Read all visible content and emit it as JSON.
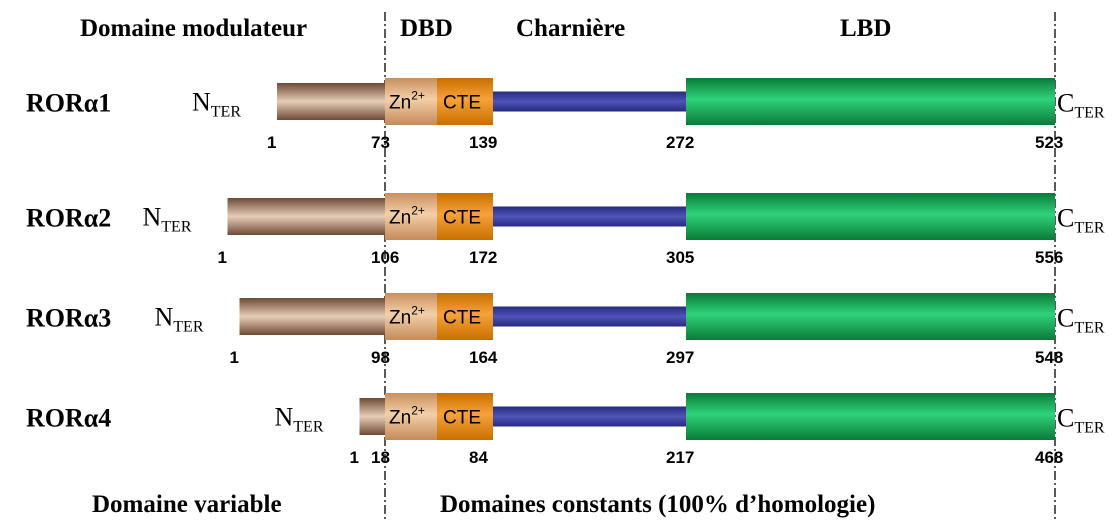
{
  "headers": {
    "modulator": "Domaine modulateur",
    "dbd": "DBD",
    "hinge": "Charnière",
    "lbd": "LBD"
  },
  "footers": {
    "variable": "Domaine variable",
    "constant": "Domaines constants (100% d’homologie)"
  },
  "labels": {
    "n_main": "N",
    "n_sub": "TER",
    "c_main": "C",
    "c_sub": "TER",
    "zn_main": "Zn",
    "zn_sup": "2+",
    "cte": "CTE"
  },
  "isoforms": [
    {
      "name": "RORα1",
      "start": "1",
      "dbd_start": "73",
      "hinge_start": "139",
      "lbd_start": "272",
      "end": "523",
      "nterm_length": 72
    },
    {
      "name": "RORα2",
      "start": "1",
      "dbd_start": "106",
      "hinge_start": "172",
      "lbd_start": "305",
      "end": "556",
      "nterm_length": 105
    },
    {
      "name": "RORα3",
      "start": "1",
      "dbd_start": "98",
      "hinge_start": "164",
      "lbd_start": "297",
      "end": "548",
      "nterm_length": 97
    },
    {
      "name": "RORα4",
      "start": "1",
      "dbd_start": "18",
      "hinge_start": "84",
      "lbd_start": "217",
      "end": "468",
      "nterm_length": 17
    }
  ],
  "colors": {
    "nterm": "#8f6a52",
    "zn": "#e8b586",
    "cte": "#e88a0c",
    "hinge": "#343a9a",
    "lbd": "#1ea55a"
  }
}
